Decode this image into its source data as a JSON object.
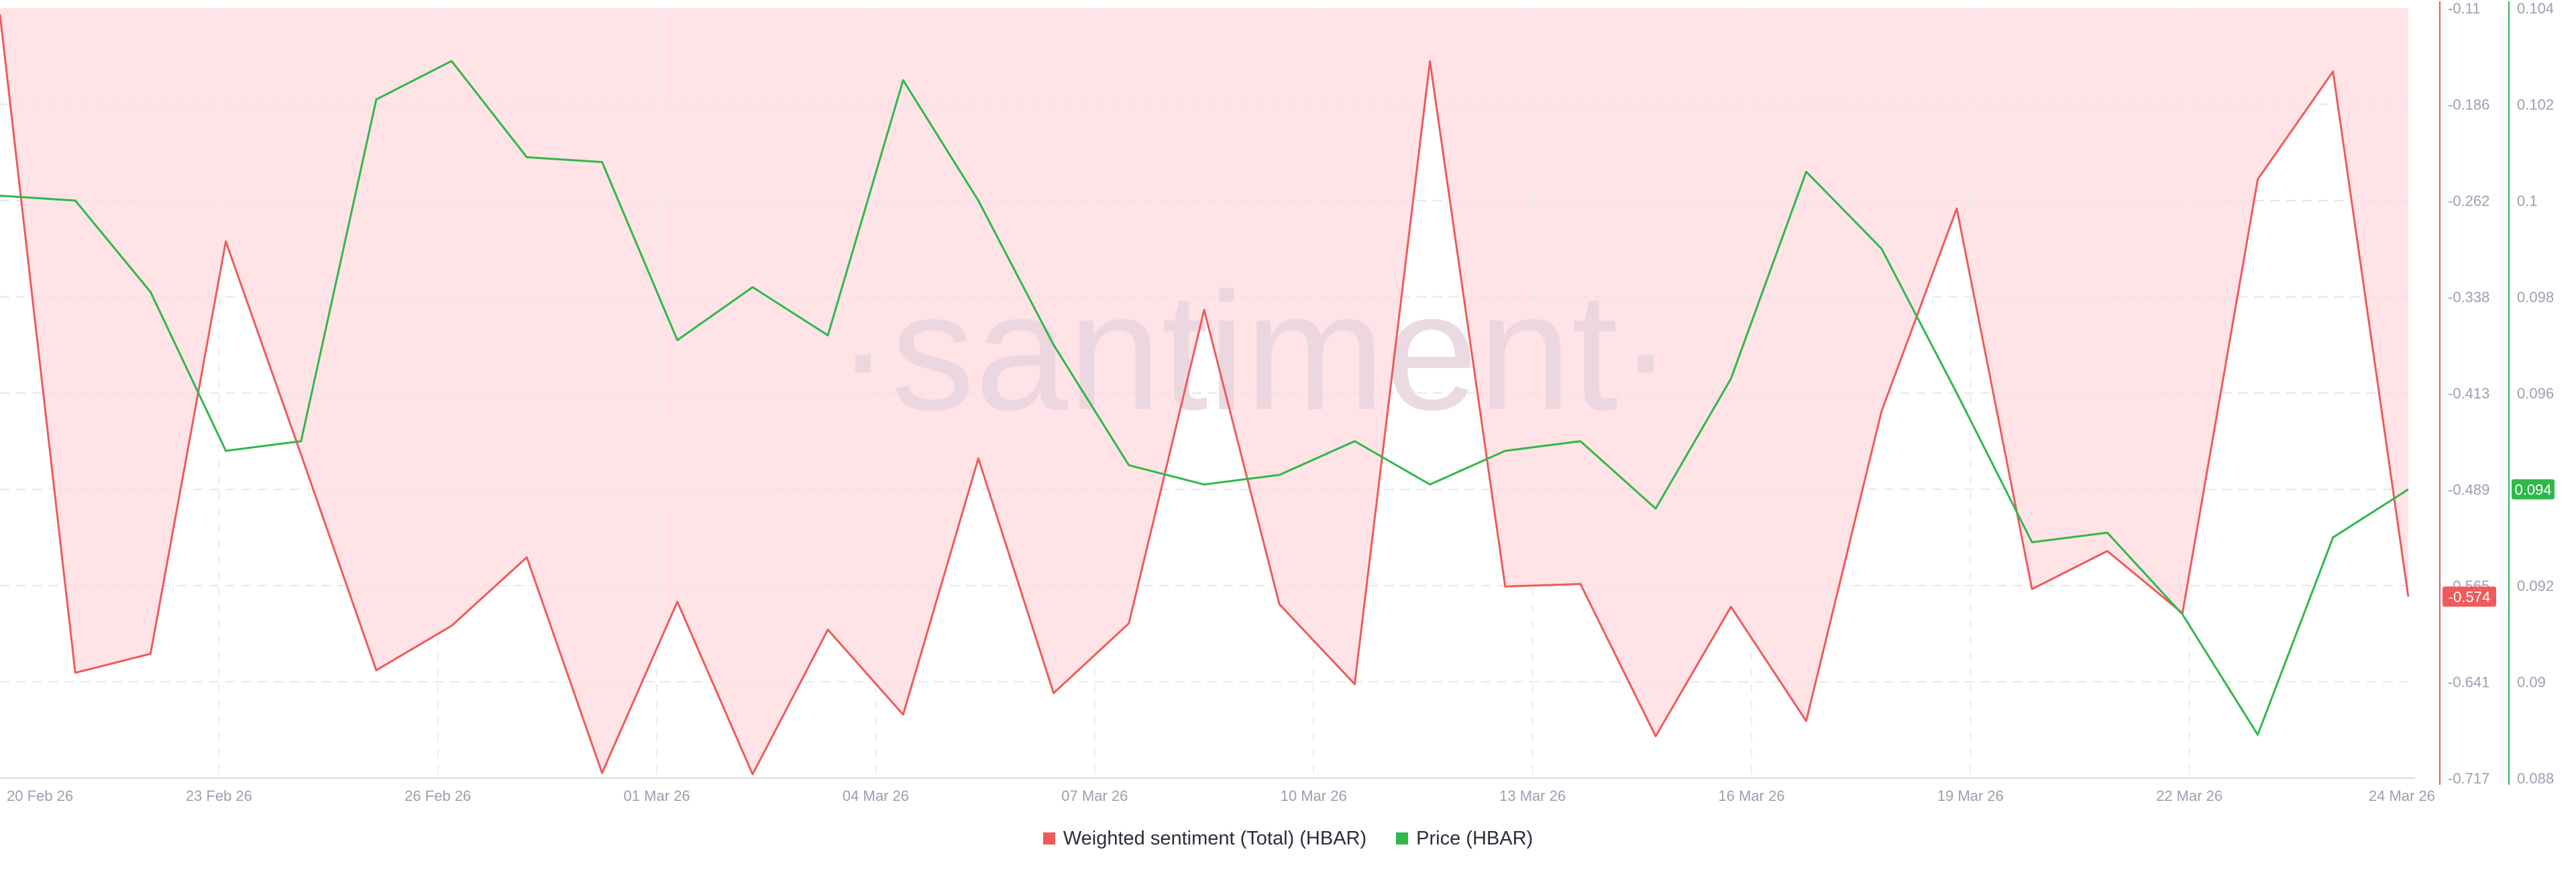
{
  "chart_data": {
    "type": "line",
    "watermark": "·santiment·",
    "x_labels": [
      "20 Feb 26",
      "23 Feb 26",
      "26 Feb 26",
      "01 Mar 26",
      "04 Mar 26",
      "07 Mar 26",
      "10 Mar 26",
      "13 Mar 26",
      "16 Mar 26",
      "19 Mar 26",
      "22 Mar 26",
      "24 Mar 26"
    ],
    "x_start": "2026-02-20",
    "x_end": "2026-03-24",
    "series": [
      {
        "name": "Weighted sentiment (Total) (HBAR)",
        "color": "#f05a5a",
        "fill": "#ffe3e6",
        "axis": "left",
        "ylim": [
          -0.717,
          -0.11
        ],
        "tick_labels": [
          "-0.11",
          "-0.186",
          "-0.262",
          "-0.338",
          "-0.413",
          "-0.489",
          "-0.565",
          "-0.641",
          "-0.717"
        ],
        "current_label": "-0.574",
        "points": [
          [
            "2026-02-20",
            -0.115
          ],
          [
            "2026-02-21",
            -0.634
          ],
          [
            "2026-02-22",
            -0.619
          ],
          [
            "2026-02-23",
            -0.294
          ],
          [
            "2026-02-24",
            -0.462
          ],
          [
            "2026-02-25",
            -0.632
          ],
          [
            "2026-02-26",
            -0.597
          ],
          [
            "2026-02-27",
            -0.543
          ],
          [
            "2026-02-28",
            -0.713
          ],
          [
            "2026-03-01",
            -0.578
          ],
          [
            "2026-03-02",
            -0.714
          ],
          [
            "2026-03-03",
            -0.6
          ],
          [
            "2026-03-04",
            -0.667
          ],
          [
            "2026-03-05",
            -0.465
          ],
          [
            "2026-03-06",
            -0.65
          ],
          [
            "2026-03-07",
            -0.595
          ],
          [
            "2026-03-08",
            -0.348
          ],
          [
            "2026-03-09",
            -0.58
          ],
          [
            "2026-03-10",
            -0.643
          ],
          [
            "2026-03-11",
            -0.152
          ],
          [
            "2026-03-12",
            -0.566
          ],
          [
            "2026-03-13",
            -0.564
          ],
          [
            "2026-03-14",
            -0.684
          ],
          [
            "2026-03-15",
            -0.582
          ],
          [
            "2026-03-16",
            -0.672
          ],
          [
            "2026-03-17",
            -0.428
          ],
          [
            "2026-03-18",
            -0.268
          ],
          [
            "2026-03-19",
            -0.568
          ],
          [
            "2026-03-20",
            -0.538
          ],
          [
            "2026-03-21",
            -0.587
          ],
          [
            "2026-03-22",
            -0.245
          ],
          [
            "2026-03-23",
            -0.16
          ],
          [
            "2026-03-24",
            -0.574
          ]
        ]
      },
      {
        "name": "Price (HBAR)",
        "color": "#2fb84b",
        "axis": "right",
        "ylim": [
          0.088,
          0.104
        ],
        "tick_labels": [
          "0.104",
          "0.102",
          "0.1",
          "0.098",
          "0.096",
          "0.094",
          "0.092",
          "0.09",
          "0.088"
        ],
        "current_label": "0.094",
        "points": [
          [
            "2026-02-20",
            0.1001
          ],
          [
            "2026-02-21",
            0.1
          ],
          [
            "2026-02-22",
            0.0981
          ],
          [
            "2026-02-23",
            0.0948
          ],
          [
            "2026-02-24",
            0.095
          ],
          [
            "2026-02-25",
            0.1021
          ],
          [
            "2026-02-26",
            0.1029
          ],
          [
            "2026-02-27",
            0.1009
          ],
          [
            "2026-02-28",
            0.1008
          ],
          [
            "2026-03-01",
            0.0971
          ],
          [
            "2026-03-02",
            0.0982
          ],
          [
            "2026-03-03",
            0.0972
          ],
          [
            "2026-03-04",
            0.1025
          ],
          [
            "2026-03-05",
            0.1
          ],
          [
            "2026-03-06",
            0.097
          ],
          [
            "2026-03-07",
            0.0945
          ],
          [
            "2026-03-08",
            0.0941
          ],
          [
            "2026-03-09",
            0.0943
          ],
          [
            "2026-03-10",
            0.095
          ],
          [
            "2026-03-11",
            0.0941
          ],
          [
            "2026-03-12",
            0.0948
          ],
          [
            "2026-03-13",
            0.095
          ],
          [
            "2026-03-14",
            0.0936
          ],
          [
            "2026-03-15",
            0.0963
          ],
          [
            "2026-03-16",
            0.1006
          ],
          [
            "2026-03-17",
            0.099
          ],
          [
            "2026-03-18",
            0.096
          ],
          [
            "2026-03-19",
            0.0929
          ],
          [
            "2026-03-20",
            0.0931
          ],
          [
            "2026-03-21",
            0.0914
          ],
          [
            "2026-03-22",
            0.0889
          ],
          [
            "2026-03-23",
            0.093
          ],
          [
            "2026-03-24",
            0.094
          ]
        ]
      }
    ],
    "grid": true,
    "legend_position": "bottom-center"
  }
}
